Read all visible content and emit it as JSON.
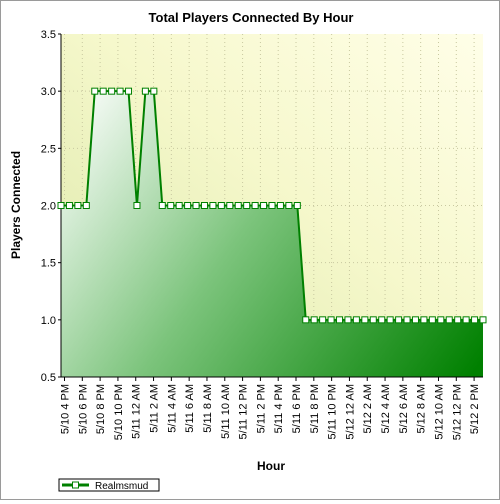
{
  "chart_data": {
    "type": "area",
    "title": "Total Players Connected By Hour",
    "xlabel": "Hour",
    "ylabel": "Players Connected",
    "ylim": [
      0.5,
      3.5
    ],
    "yticks": [
      "0.5",
      "1.0",
      "1.5",
      "2.0",
      "2.5",
      "3.0",
      "3.5"
    ],
    "x_tick_labels": [
      "5/10 4 PM",
      "5/10 6 PM",
      "5/10 8 PM",
      "5/10 10 PM",
      "5/11 12 AM",
      "5/11 2 AM",
      "5/11 4 AM",
      "5/11 6 AM",
      "5/11 8 AM",
      "5/11 10 AM",
      "5/11 12 PM",
      "5/11 2 PM",
      "5/11 4 PM",
      "5/11 6 PM",
      "5/11 8 PM",
      "5/11 10 PM",
      "5/12 12 AM",
      "5/12 2 AM",
      "5/12 4 AM",
      "5/12 6 AM",
      "5/12 8 AM",
      "5/12 10 AM",
      "5/12 12 PM",
      "5/12 2 PM"
    ],
    "grid": true,
    "legend_position": "bottom-left",
    "series": [
      {
        "name": "Realmsmud",
        "color": "#008000",
        "values": [
          2,
          2,
          2,
          2,
          3,
          3,
          3,
          3,
          3,
          2,
          3,
          3,
          2,
          2,
          2,
          2,
          2,
          2,
          2,
          2,
          2,
          2,
          2,
          2,
          2,
          2,
          2,
          2,
          2,
          1,
          1,
          1,
          1,
          1,
          1,
          1,
          1,
          1,
          1,
          1,
          1,
          1,
          1,
          1,
          1,
          1,
          1,
          1,
          1,
          1,
          1
        ]
      }
    ]
  }
}
